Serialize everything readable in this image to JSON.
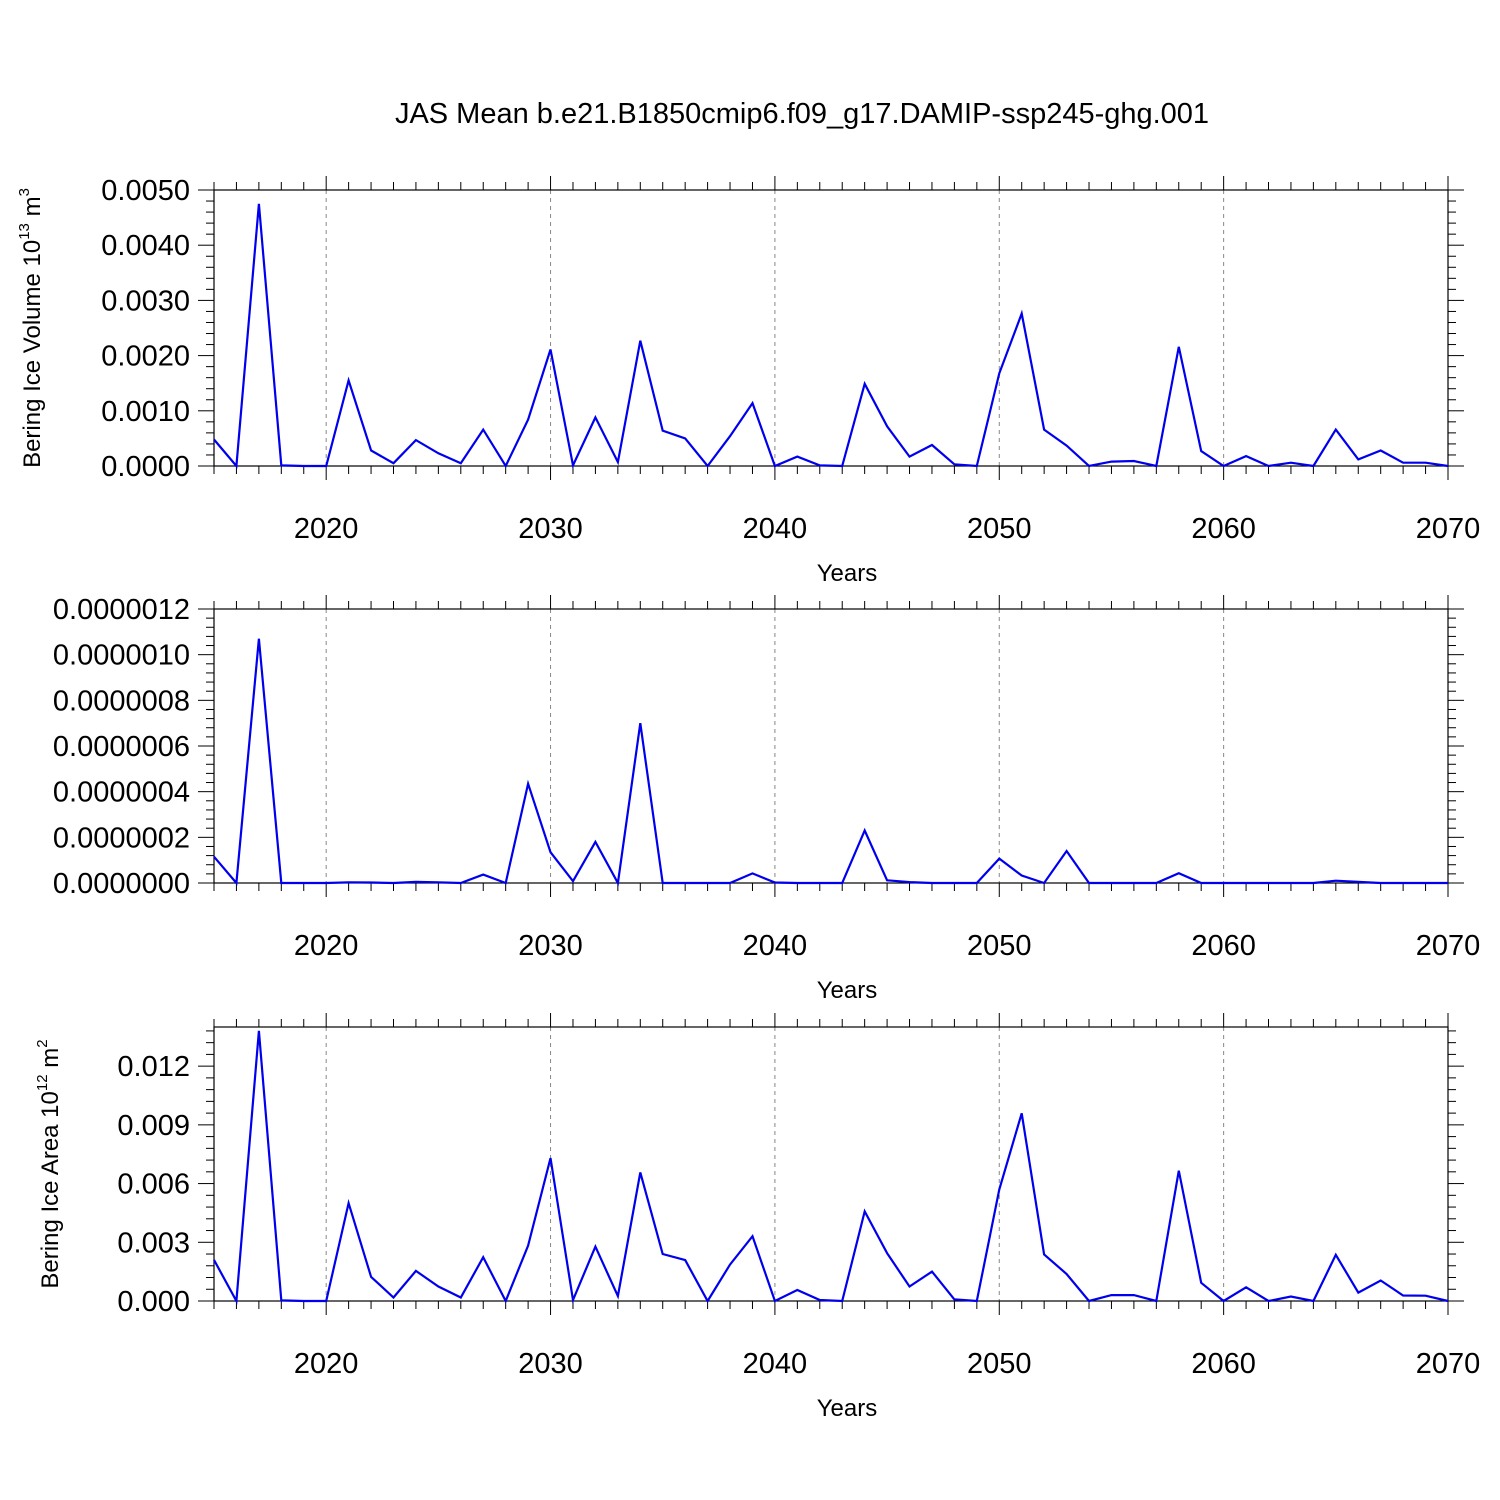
{
  "figure_title": "JAS Mean b.e21.B1850cmip6.f09_g17.DAMIP-ssp245-ghg.001",
  "colors": {
    "series": "#0000ee",
    "axes": "#000000",
    "grid": "#888888"
  },
  "chart_data": [
    {
      "type": "line",
      "title": "",
      "xlabel": "Years",
      "ylabel_main": "Bering Ice Volume 10",
      "ylabel_sup": "13",
      "ylabel_unit": " m",
      "ylabel_unit_sup": "3",
      "xlim": [
        2015,
        2070
      ],
      "ylim": [
        0,
        0.005
      ],
      "xticks": [
        2020,
        2030,
        2040,
        2050,
        2060,
        2070
      ],
      "xtick_labels": [
        "2020",
        "2030",
        "2040",
        "2050",
        "2060",
        "2070"
      ],
      "yticks": [
        0,
        0.001,
        0.002,
        0.003,
        0.004,
        0.005
      ],
      "ytick_labels": [
        "0.0000",
        "0.0010",
        "0.0020",
        "0.0030",
        "0.0040",
        "0.0050"
      ],
      "x": [
        2015,
        2016,
        2017,
        2018,
        2019,
        2020,
        2021,
        2022,
        2023,
        2024,
        2025,
        2026,
        2027,
        2028,
        2029,
        2030,
        2031,
        2032,
        2033,
        2034,
        2035,
        2036,
        2037,
        2038,
        2039,
        2040,
        2041,
        2042,
        2043,
        2044,
        2045,
        2046,
        2047,
        2048,
        2049,
        2050,
        2051,
        2052,
        2053,
        2054,
        2055,
        2056,
        2057,
        2058,
        2059,
        2060,
        2061,
        2062,
        2063,
        2064,
        2065,
        2066,
        2067,
        2068,
        2069,
        2070
      ],
      "series": [
        {
          "values": [
            0.00048,
            0.0,
            0.00475,
            1e-05,
            0.0,
            0.0,
            0.00155,
            0.00028,
            5e-05,
            0.00047,
            0.00023,
            5e-05,
            0.00066,
            0.0,
            0.00084,
            0.00211,
            1e-05,
            0.00088,
            7e-05,
            0.00227,
            0.00064,
            0.0005,
            0.0,
            0.00054,
            0.00114,
            0.0,
            0.00017,
            1e-05,
            0.0,
            0.00149,
            0.00072,
            0.00017,
            0.00038,
            3e-05,
            0.0,
            0.00168,
            0.00276,
            0.00066,
            0.00037,
            0.0,
            8e-05,
            9e-05,
            0.0,
            0.00216,
            0.00027,
            0.0,
            0.00018,
            0.0,
            6e-05,
            0.0,
            0.00066,
            0.00012,
            0.00028,
            6e-05,
            6e-05,
            0.0
          ]
        }
      ]
    },
    {
      "type": "line",
      "title": "",
      "xlabel": "Years",
      "ylabel_main": "",
      "ylabel_sup": "",
      "ylabel_unit": "",
      "ylabel_unit_sup": "",
      "xlim": [
        2015,
        2070
      ],
      "ylim": [
        0,
        1.2e-06
      ],
      "xticks": [
        2020,
        2030,
        2040,
        2050,
        2060,
        2070
      ],
      "xtick_labels": [
        "2020",
        "2030",
        "2040",
        "2050",
        "2060",
        "2070"
      ],
      "yticks": [
        0,
        2e-07,
        4e-07,
        6e-07,
        8e-07,
        1e-06,
        1.2e-06
      ],
      "ytick_labels": [
        "0.0000000",
        "0.0000002",
        "0.0000004",
        "0.0000006",
        "0.0000008",
        "0.0000010",
        "0.0000012"
      ],
      "x": [
        2015,
        2016,
        2017,
        2018,
        2019,
        2020,
        2021,
        2022,
        2023,
        2024,
        2025,
        2026,
        2027,
        2028,
        2029,
        2030,
        2031,
        2032,
        2033,
        2034,
        2035,
        2036,
        2037,
        2038,
        2039,
        2040,
        2041,
        2042,
        2043,
        2044,
        2045,
        2046,
        2047,
        2048,
        2049,
        2050,
        2051,
        2052,
        2053,
        2054,
        2055,
        2056,
        2057,
        2058,
        2059,
        2060,
        2061,
        2062,
        2063,
        2064,
        2065,
        2066,
        2067,
        2068,
        2069,
        2070
      ],
      "series": [
        {
          "values": [
            1.15e-07,
            0.0,
            1.07e-06,
            0.0,
            0.0,
            0.0,
            3e-09,
            2e-09,
            0.0,
            5e-09,
            3e-09,
            0.0,
            3.7e-08,
            0.0,
            4.35e-07,
            1.35e-07,
            8e-09,
            1.8e-07,
            0.0,
            7e-07,
            0.0,
            0.0,
            0.0,
            0.0,
            4.2e-08,
            2e-09,
            0.0,
            0.0,
            0.0,
            2.3e-07,
            1.2e-08,
            4e-09,
            0.0,
            0.0,
            0.0,
            1.07e-07,
            3.3e-08,
            0.0,
            1.4e-07,
            0.0,
            0.0,
            0.0,
            0.0,
            4.3e-08,
            0.0,
            0.0,
            0.0,
            0.0,
            0.0,
            0.0,
            1e-08,
            5e-09,
            0.0,
            0.0,
            0.0,
            0.0
          ]
        }
      ]
    },
    {
      "type": "line",
      "title": "",
      "xlabel": "Years",
      "ylabel_main": "Bering Ice Area 10",
      "ylabel_sup": "12",
      "ylabel_unit": " m",
      "ylabel_unit_sup": "2",
      "xlim": [
        2015,
        2070
      ],
      "ylim": [
        0,
        0.014
      ],
      "xticks": [
        2020,
        2030,
        2040,
        2050,
        2060,
        2070
      ],
      "xtick_labels": [
        "2020",
        "2030",
        "2040",
        "2050",
        "2060",
        "2070"
      ],
      "yticks": [
        0,
        0.003,
        0.006,
        0.009,
        0.012
      ],
      "ytick_labels": [
        "0.000",
        "0.003",
        "0.006",
        "0.009",
        "0.012"
      ],
      "x": [
        2015,
        2016,
        2017,
        2018,
        2019,
        2020,
        2021,
        2022,
        2023,
        2024,
        2025,
        2026,
        2027,
        2028,
        2029,
        2030,
        2031,
        2032,
        2033,
        2034,
        2035,
        2036,
        2037,
        2038,
        2039,
        2040,
        2041,
        2042,
        2043,
        2044,
        2045,
        2046,
        2047,
        2048,
        2049,
        2050,
        2051,
        2052,
        2053,
        2054,
        2055,
        2056,
        2057,
        2058,
        2059,
        2060,
        2061,
        2062,
        2063,
        2064,
        2065,
        2066,
        2067,
        2068,
        2069,
        2070
      ],
      "series": [
        {
          "values": [
            0.0021,
            0.0,
            0.0138,
            3e-05,
            0.0,
            0.0,
            0.005,
            0.00123,
            0.00018,
            0.00154,
            0.00074,
            0.00018,
            0.00224,
            0.0,
            0.00283,
            0.0073,
            5e-05,
            0.00278,
            0.00025,
            0.00657,
            0.0024,
            0.00209,
            0.0,
            0.00186,
            0.00331,
            0.0,
            0.00056,
            5e-05,
            0.0,
            0.00458,
            0.00244,
            0.00074,
            0.0015,
            8e-05,
            0.0,
            0.0057,
            0.00959,
            0.00238,
            0.00138,
            0.0,
            0.0003,
            0.0003,
            0.0,
            0.00666,
            0.00093,
            0.0,
            0.0007,
            0.0,
            0.00023,
            0.0,
            0.00236,
            0.00043,
            0.00105,
            0.00028,
            0.00027,
            0.0
          ]
        }
      ]
    }
  ]
}
